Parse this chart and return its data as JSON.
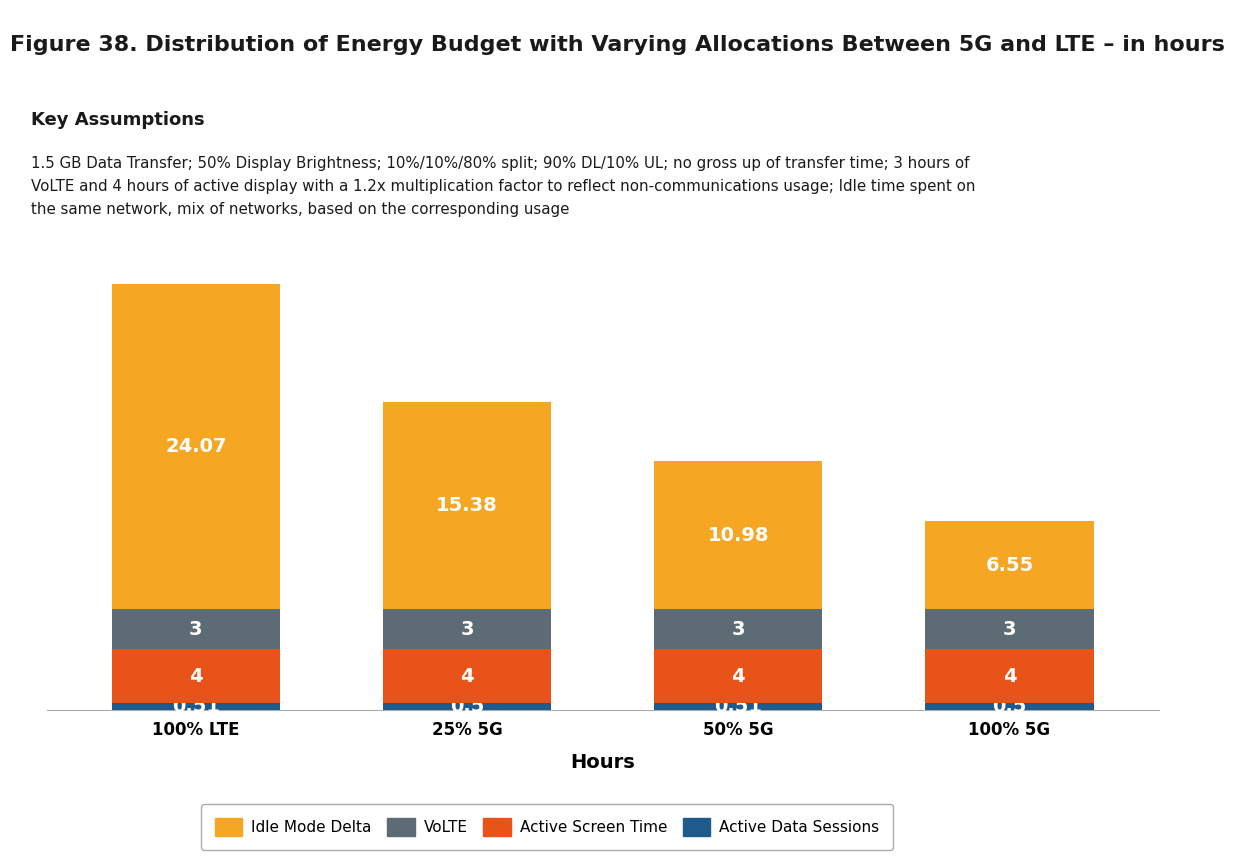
{
  "title": "Figure 38. Distribution of Energy Budget with Varying Allocations Between 5G and LTE – in hours",
  "key_assumptions_title": "Key Assumptions",
  "key_assumptions_text": "1.5 GB Data Transfer; 50% Display Brightness; 10%/10%/80% split; 90% DL/10% UL; no gross up of transfer time; 3 hours of\nVoLTE and 4 hours of active display with a 1.2x multiplication factor to reflect non-communications usage; Idle time spent on\nthe same network, mix of networks, based on the corresponding usage",
  "categories": [
    "100% LTE",
    "25% 5G",
    "50% 5G",
    "100% 5G"
  ],
  "series": [
    {
      "name": "Active Data Sessions",
      "color": "#1e5a8c",
      "values": [
        0.51,
        0.5,
        0.51,
        0.5
      ]
    },
    {
      "name": "Active Screen Time",
      "color": "#e8531a",
      "values": [
        4,
        4,
        4,
        4
      ]
    },
    {
      "name": "VoLTE",
      "color": "#5d6b74",
      "values": [
        3,
        3,
        3,
        3
      ]
    },
    {
      "name": "Idle Mode Delta",
      "color": "#f5a623",
      "values": [
        24.07,
        15.38,
        10.98,
        6.55
      ]
    }
  ],
  "legend_order": [
    "Idle Mode Delta",
    "VoLTE",
    "Active Screen Time",
    "Active Data Sessions"
  ],
  "xlabel": "Hours",
  "xlabel_fontsize": 14,
  "title_fontsize": 16,
  "title_color": "#1a1a1a",
  "title_bg_color": "#ffffff",
  "assumption_bg_color": "#e0e0e0",
  "bar_width": 0.62,
  "ylim": [
    0,
    32
  ],
  "value_label_color": "#ffffff",
  "value_label_fontsize": 14,
  "legend_fontsize": 11,
  "tick_label_fontsize": 12,
  "background_color": "#ffffff",
  "plot_bg_color": "#ffffff",
  "title_line_color": "#c8680a"
}
